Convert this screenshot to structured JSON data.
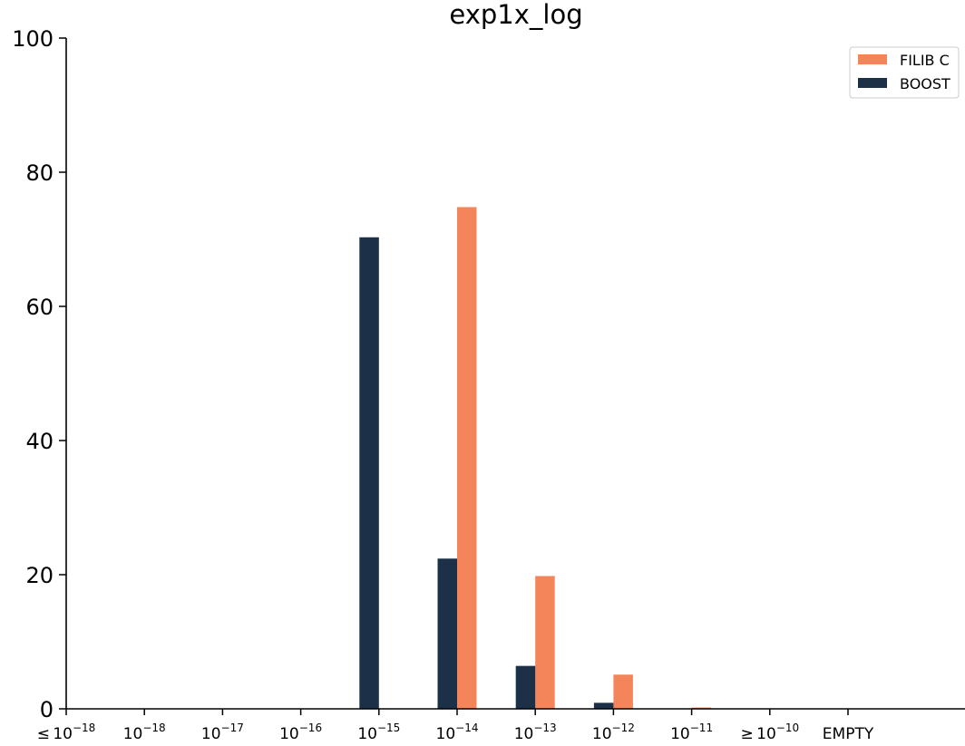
{
  "chart_data": {
    "type": "bar",
    "title": "exp1x_log",
    "xlabel": "",
    "ylabel": "",
    "ylim": [
      0,
      100
    ],
    "yticks": [
      0,
      20,
      40,
      60,
      80,
      100
    ],
    "categories": [
      {
        "prefix": "≤",
        "base": "10",
        "exp": "−18"
      },
      {
        "prefix": "",
        "base": "10",
        "exp": "−18"
      },
      {
        "prefix": "",
        "base": "10",
        "exp": "−17"
      },
      {
        "prefix": "",
        "base": "10",
        "exp": "−16"
      },
      {
        "prefix": "",
        "base": "10",
        "exp": "−15"
      },
      {
        "prefix": "",
        "base": "10",
        "exp": "−14"
      },
      {
        "prefix": "",
        "base": "10",
        "exp": "−13"
      },
      {
        "prefix": "",
        "base": "10",
        "exp": "−12"
      },
      {
        "prefix": "",
        "base": "10",
        "exp": "−11"
      },
      {
        "prefix": "≥",
        "base": "10",
        "exp": "−10"
      },
      {
        "prefix": "",
        "base": "EMPTY",
        "exp": ""
      }
    ],
    "series": [
      {
        "name": "FILIB C",
        "color": "#f4845a",
        "values": [
          0,
          0,
          0,
          0,
          0,
          74.8,
          19.8,
          5.1,
          0.2,
          0,
          0
        ]
      },
      {
        "name": "BOOST",
        "color": "#1c3047",
        "values": [
          0,
          0,
          0,
          0,
          70.3,
          22.4,
          6.4,
          0.9,
          0,
          0,
          0
        ]
      }
    ],
    "legend_position": "top-right",
    "grid": false
  }
}
